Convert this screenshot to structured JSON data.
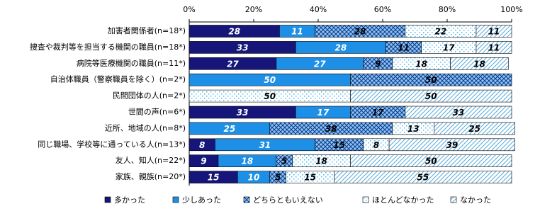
{
  "chart_data": {
    "type": "stacked-barh",
    "categories": [
      "加害者関係者(n=18*)",
      "捜査や裁判等を担当する機関の職員(n=18*)",
      "病院等医療機関の職員(n=11*)",
      "自治体職員（警察職員を除く）(n=2*)",
      "民間団体の人(n=2*)",
      "世間の声(n=6*)",
      "近所、地域の人(n=8*)",
      "同じ職場、学校等に通っている人(n=13*)",
      "友人、知人(n=22*)",
      "家族、親族(n=20*)"
    ],
    "series": [
      {
        "name": "多かった",
        "color": "#16167a",
        "pattern": "solid",
        "values": [
          28,
          33,
          27,
          null,
          null,
          33,
          null,
          8,
          9,
          15
        ]
      },
      {
        "name": "少しあった",
        "color": "#1e8fe6",
        "pattern": "solid",
        "values": [
          11,
          28,
          27,
          50,
          null,
          17,
          25,
          31,
          18,
          10
        ]
      },
      {
        "name": "どちらともいえない",
        "color": "#2f8fe8",
        "pattern": "crosshatch",
        "values": [
          28,
          11,
          9,
          50,
          null,
          17,
          38,
          15,
          5,
          5
        ]
      },
      {
        "name": "ほとんどなかった",
        "color": "#47b6f0",
        "pattern": "dots",
        "values": [
          22,
          17,
          18,
          null,
          50,
          null,
          13,
          8,
          18,
          15
        ]
      },
      {
        "name": "なかった",
        "color": "#5aaad8",
        "pattern": "diagonal",
        "values": [
          11,
          11,
          18,
          null,
          50,
          33,
          25,
          39,
          50,
          55
        ]
      }
    ],
    "xlim": [
      0,
      100
    ],
    "xticks": [
      {
        "value": 0,
        "label": "0%"
      },
      {
        "value": 20,
        "label": "20%"
      },
      {
        "value": 40,
        "label": "40%"
      },
      {
        "value": 60,
        "label": "60%"
      },
      {
        "value": 80,
        "label": "80%"
      },
      {
        "value": 100,
        "label": "100%"
      }
    ],
    "legend": "bottom"
  }
}
